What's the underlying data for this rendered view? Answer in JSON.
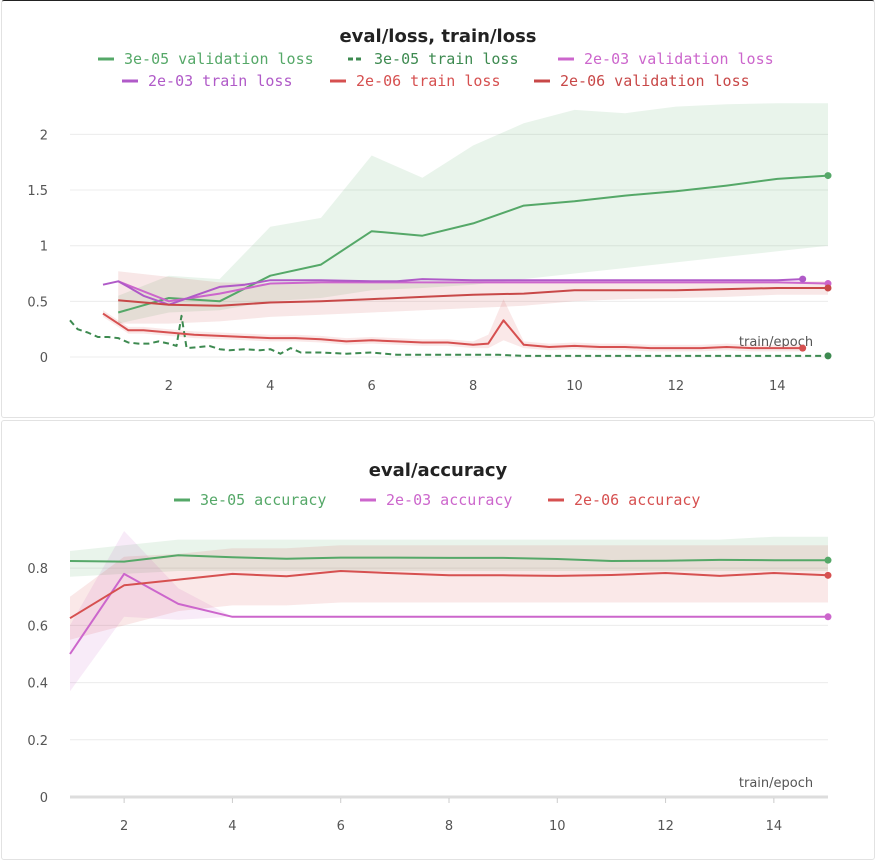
{
  "chart_data": [
    {
      "type": "line",
      "title": "eval/loss, train/loss",
      "xlabel": "train/epoch",
      "ylabel": "",
      "xlim": [
        0.05,
        15
      ],
      "ylim": [
        0,
        2.3
      ],
      "xticks": [
        "2",
        "4",
        "6",
        "8",
        "10",
        "12",
        "14"
      ],
      "yticks": [
        "0",
        "0.5",
        "1",
        "1.5",
        "2"
      ],
      "grid": true,
      "legend_position": "top",
      "series": [
        {
          "name": "3e-05 validation loss",
          "color": "#55a868",
          "dash": "solid",
          "x": [
            1,
            2,
            3,
            4,
            5,
            6,
            7,
            8,
            9,
            10,
            11,
            12,
            13,
            14,
            15
          ],
          "y": [
            0.4,
            0.53,
            0.5,
            0.73,
            0.83,
            1.13,
            1.09,
            1.2,
            1.36,
            1.4,
            1.45,
            1.49,
            1.54,
            1.6,
            1.63
          ],
          "band_upper": [
            0.55,
            0.73,
            0.7,
            1.17,
            1.25,
            1.81,
            1.61,
            1.9,
            2.1,
            2.22,
            2.19,
            2.25,
            2.27,
            2.28,
            2.28
          ],
          "band_lower": [
            0.3,
            0.4,
            0.42,
            0.5,
            0.53,
            0.6,
            0.62,
            0.65,
            0.7,
            0.75,
            0.8,
            0.85,
            0.9,
            0.95,
            1.0
          ]
        },
        {
          "name": "3e-05 train loss",
          "color": "#3d8a50",
          "dash": "dashed",
          "x": [
            0.05,
            0.2,
            0.4,
            0.6,
            0.8,
            1.0,
            1.2,
            1.4,
            1.6,
            1.8,
            2.0,
            2.15,
            2.25,
            2.35,
            2.6,
            2.8,
            3.0,
            3.2,
            3.5,
            3.8,
            4.0,
            4.2,
            4.4,
            4.6,
            5.0,
            5.5,
            6.0,
            6.5,
            7.0,
            7.5,
            8.0,
            8.5,
            9.0,
            9.5,
            10,
            11,
            12,
            13,
            14,
            15
          ],
          "y": [
            0.33,
            0.25,
            0.22,
            0.18,
            0.18,
            0.17,
            0.13,
            0.12,
            0.12,
            0.14,
            0.12,
            0.1,
            0.37,
            0.08,
            0.09,
            0.1,
            0.07,
            0.06,
            0.07,
            0.06,
            0.07,
            0.03,
            0.08,
            0.04,
            0.04,
            0.03,
            0.04,
            0.02,
            0.02,
            0.02,
            0.02,
            0.02,
            0.01,
            0.01,
            0.01,
            0.01,
            0.01,
            0.01,
            0.01,
            0.01
          ]
        },
        {
          "name": "2e-03 validation loss",
          "color": "#cc66cc",
          "dash": "solid",
          "x": [
            1,
            2,
            3,
            4,
            5,
            6,
            7,
            8,
            9,
            10,
            11,
            12,
            13,
            14,
            15
          ],
          "y": [
            0.68,
            0.5,
            0.57,
            0.66,
            0.67,
            0.67,
            0.67,
            0.67,
            0.67,
            0.67,
            0.67,
            0.67,
            0.67,
            0.67,
            0.66
          ]
        },
        {
          "name": "2e-03 train loss",
          "color": "#b05ac8",
          "dash": "solid",
          "x": [
            0.7,
            1.0,
            1.2,
            1.5,
            2.0,
            2.5,
            3.0,
            3.5,
            4.0,
            5.0,
            6.0,
            6.5,
            7.0,
            8.0,
            9.0,
            10,
            11,
            12,
            13,
            14,
            14.5
          ],
          "y": [
            0.65,
            0.68,
            0.63,
            0.55,
            0.47,
            0.55,
            0.63,
            0.65,
            0.69,
            0.69,
            0.68,
            0.68,
            0.7,
            0.69,
            0.69,
            0.69,
            0.69,
            0.69,
            0.69,
            0.69,
            0.7
          ]
        },
        {
          "name": "2e-06 train loss",
          "color": "#d65050",
          "dash": "solid",
          "x": [
            0.7,
            1.0,
            1.2,
            1.5,
            2.0,
            2.5,
            3.0,
            3.5,
            4.0,
            4.5,
            5.0,
            5.5,
            6.0,
            6.5,
            7.0,
            7.5,
            8.0,
            8.3,
            8.6,
            9.0,
            9.5,
            10,
            10.5,
            11,
            11.5,
            12,
            12.5,
            13,
            13.5,
            14,
            14.5
          ],
          "y": [
            0.39,
            0.3,
            0.24,
            0.24,
            0.22,
            0.2,
            0.19,
            0.18,
            0.17,
            0.17,
            0.16,
            0.14,
            0.15,
            0.14,
            0.13,
            0.13,
            0.11,
            0.12,
            0.33,
            0.11,
            0.09,
            0.1,
            0.09,
            0.09,
            0.08,
            0.08,
            0.08,
            0.09,
            0.08,
            0.08,
            0.08
          ],
          "band_upper": [
            0.42,
            0.33,
            0.27,
            0.27,
            0.25,
            0.23,
            0.22,
            0.21,
            0.2,
            0.2,
            0.19,
            0.17,
            0.18,
            0.17,
            0.16,
            0.16,
            0.14,
            0.2,
            0.52,
            0.14,
            0.12,
            0.13,
            0.12,
            0.12,
            0.11,
            0.11,
            0.11,
            0.12,
            0.11,
            0.11,
            0.11
          ],
          "band_lower": [
            0.36,
            0.27,
            0.21,
            0.21,
            0.19,
            0.17,
            0.16,
            0.15,
            0.14,
            0.14,
            0.13,
            0.11,
            0.12,
            0.11,
            0.1,
            0.1,
            0.08,
            0.08,
            0.15,
            0.08,
            0.06,
            0.07,
            0.06,
            0.06,
            0.05,
            0.05,
            0.05,
            0.06,
            0.05,
            0.05,
            0.05
          ]
        },
        {
          "name": "2e-06 validation loss",
          "color": "#c84848",
          "dash": "solid",
          "x": [
            1,
            2,
            3,
            4,
            5,
            6,
            7,
            8,
            9,
            10,
            11,
            12,
            13,
            14,
            15
          ],
          "y": [
            0.51,
            0.47,
            0.46,
            0.49,
            0.5,
            0.52,
            0.54,
            0.56,
            0.57,
            0.6,
            0.6,
            0.6,
            0.61,
            0.62,
            0.62
          ],
          "band_upper": [
            0.77,
            0.72,
            0.67,
            0.66,
            0.66,
            0.66,
            0.66,
            0.67,
            0.67,
            0.68,
            0.68,
            0.68,
            0.68,
            0.68,
            0.68
          ],
          "band_lower": [
            0.3,
            0.3,
            0.32,
            0.36,
            0.38,
            0.4,
            0.42,
            0.44,
            0.46,
            0.5,
            0.52,
            0.53,
            0.54,
            0.56,
            0.56
          ]
        }
      ]
    },
    {
      "type": "line",
      "title": "eval/accuracy",
      "xlabel": "train/epoch",
      "ylabel": "",
      "xlim": [
        1,
        15
      ],
      "ylim": [
        0,
        0.93
      ],
      "xticks": [
        "2",
        "4",
        "6",
        "8",
        "10",
        "12",
        "14"
      ],
      "yticks": [
        "0",
        "0.2",
        "0.4",
        "0.6",
        "0.8"
      ],
      "grid": true,
      "legend_position": "top",
      "series": [
        {
          "name": "3e-05 accuracy",
          "color": "#55a868",
          "dash": "solid",
          "x": [
            1,
            2,
            3,
            4,
            5,
            6,
            7,
            8,
            9,
            10,
            11,
            12,
            13,
            14,
            15
          ],
          "y": [
            0.825,
            0.823,
            0.845,
            0.838,
            0.833,
            0.837,
            0.837,
            0.836,
            0.836,
            0.832,
            0.825,
            0.826,
            0.829,
            0.828,
            0.828
          ],
          "band_upper": [
            0.86,
            0.88,
            0.9,
            0.9,
            0.9,
            0.9,
            0.9,
            0.9,
            0.9,
            0.9,
            0.9,
            0.9,
            0.9,
            0.91,
            0.91
          ],
          "band_lower": [
            0.77,
            0.78,
            0.79,
            0.79,
            0.79,
            0.79,
            0.79,
            0.79,
            0.79,
            0.79,
            0.79,
            0.79,
            0.79,
            0.79,
            0.79
          ]
        },
        {
          "name": "2e-03 accuracy",
          "color": "#cc66cc",
          "dash": "solid",
          "x": [
            1,
            2,
            3,
            4,
            5,
            6,
            7,
            8,
            9,
            10,
            11,
            12,
            13,
            14,
            15
          ],
          "y": [
            0.5,
            0.78,
            0.675,
            0.63,
            0.63,
            0.63,
            0.63,
            0.63,
            0.63,
            0.63,
            0.63,
            0.63,
            0.63,
            0.63,
            0.63
          ],
          "band_upper": [
            0.6,
            0.93,
            0.73,
            0.63,
            0.63,
            0.63,
            0.63,
            0.63,
            0.63,
            0.63,
            0.63,
            0.63,
            0.63,
            0.63,
            0.63
          ],
          "band_lower": [
            0.37,
            0.63,
            0.62,
            0.63,
            0.63,
            0.63,
            0.63,
            0.63,
            0.63,
            0.63,
            0.63,
            0.63,
            0.63,
            0.63,
            0.63
          ]
        },
        {
          "name": "2e-06 accuracy",
          "color": "#d65050",
          "dash": "solid",
          "x": [
            1,
            2,
            3,
            4,
            5,
            6,
            7,
            8,
            9,
            10,
            11,
            12,
            13,
            14,
            15
          ],
          "y": [
            0.625,
            0.74,
            0.76,
            0.78,
            0.772,
            0.79,
            0.782,
            0.775,
            0.775,
            0.773,
            0.776,
            0.783,
            0.773,
            0.783,
            0.775
          ],
          "band_upper": [
            0.7,
            0.84,
            0.85,
            0.87,
            0.87,
            0.88,
            0.88,
            0.88,
            0.88,
            0.88,
            0.88,
            0.88,
            0.88,
            0.88,
            0.88
          ],
          "band_lower": [
            0.55,
            0.6,
            0.65,
            0.67,
            0.67,
            0.68,
            0.68,
            0.68,
            0.68,
            0.68,
            0.68,
            0.68,
            0.68,
            0.68,
            0.68
          ]
        }
      ]
    }
  ]
}
